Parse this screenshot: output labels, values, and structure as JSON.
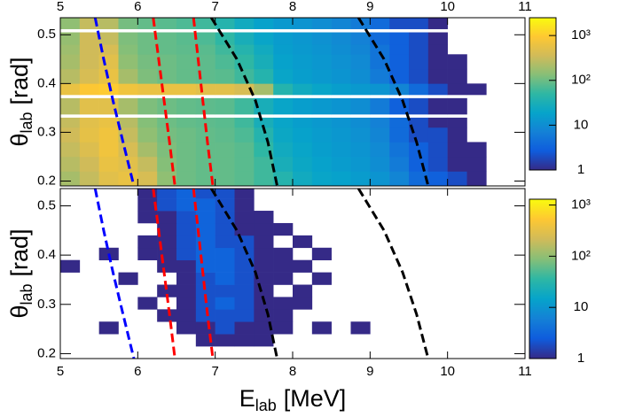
{
  "chart_data": [
    {
      "type": "heatmap",
      "ylabel": {
        "main": "θ",
        "sub": "lab",
        "unit": "[rad]"
      },
      "xlim": [
        5,
        11
      ],
      "xticks": [
        5,
        6,
        7,
        8,
        9,
        10,
        11
      ],
      "xtick_side": "top",
      "ylim": [
        0.19,
        0.535
      ],
      "yticks": [
        0.2,
        0.3,
        0.4,
        0.5
      ],
      "x_bins": [
        5,
        5.25,
        5.5,
        5.75,
        6,
        6.25,
        6.5,
        6.75,
        7,
        7.25,
        7.5,
        7.75,
        8,
        8.25,
        8.5,
        8.75,
        9,
        9.25,
        9.5,
        9.75,
        10,
        10.25,
        10.5,
        10.75,
        11
      ],
      "y_bins": [
        0.19,
        0.22,
        0.25,
        0.28,
        0.31,
        0.33,
        0.337,
        0.37,
        0.377,
        0.4,
        0.43,
        0.46,
        0.48,
        0.505,
        0.512,
        0.535
      ],
      "values": [
        [
          200,
          300,
          500,
          600,
          400,
          150,
          100,
          90,
          90,
          80,
          60,
          40,
          25,
          20,
          18,
          15,
          12,
          8,
          4,
          3,
          2,
          1,
          0,
          0
        ],
        [
          250,
          350,
          600,
          500,
          300,
          130,
          100,
          90,
          90,
          80,
          60,
          30,
          22,
          18,
          15,
          13,
          10,
          6,
          3,
          2,
          1,
          1,
          0,
          0
        ],
        [
          300,
          450,
          700,
          400,
          200,
          120,
          100,
          90,
          90,
          80,
          50,
          25,
          20,
          16,
          14,
          12,
          9,
          5,
          3,
          2,
          1,
          1,
          0,
          0
        ],
        [
          350,
          550,
          700,
          300,
          150,
          110,
          100,
          90,
          85,
          70,
          40,
          22,
          18,
          15,
          13,
          11,
          8,
          4,
          2,
          2,
          1,
          0,
          0,
          0
        ],
        [
          300,
          500,
          600,
          250,
          130,
          100,
          90,
          85,
          80,
          60,
          30,
          20,
          16,
          14,
          12,
          10,
          7,
          4,
          2,
          1,
          1,
          0,
          0,
          0
        ],
        [
          0,
          0,
          0,
          0,
          0,
          0,
          0,
          0,
          0,
          0,
          0,
          0,
          0,
          0,
          0,
          0,
          0,
          0,
          0,
          0,
          0,
          0,
          0,
          0
        ],
        [
          250,
          500,
          500,
          200,
          120,
          100,
          90,
          85,
          80,
          60,
          30,
          20,
          16,
          14,
          12,
          10,
          6,
          3,
          2,
          1,
          1,
          0,
          0,
          0
        ],
        [
          0,
          0,
          0,
          0,
          0,
          0,
          0,
          0,
          0,
          0,
          0,
          0,
          0,
          0,
          0,
          0,
          0,
          0,
          0,
          0,
          0,
          0,
          0,
          0
        ],
        [
          600,
          900,
          1000,
          700,
          600,
          600,
          600,
          500,
          500,
          400,
          200,
          40,
          25,
          20,
          16,
          14,
          12,
          8,
          4,
          2,
          1,
          1,
          0,
          0
        ],
        [
          250,
          400,
          600,
          200,
          120,
          100,
          90,
          85,
          80,
          60,
          40,
          20,
          16,
          14,
          12,
          10,
          6,
          3,
          2,
          1,
          1,
          0,
          0,
          0
        ],
        [
          200,
          350,
          500,
          150,
          110,
          100,
          90,
          85,
          70,
          50,
          30,
          18,
          15,
          13,
          11,
          9,
          5,
          3,
          2,
          1,
          1,
          0,
          0,
          0
        ],
        [
          180,
          350,
          400,
          130,
          100,
          90,
          85,
          80,
          60,
          40,
          25,
          16,
          14,
          12,
          10,
          8,
          5,
          3,
          2,
          1,
          0,
          0,
          0,
          0
        ],
        [
          160,
          350,
          300,
          120,
          100,
          90,
          80,
          70,
          50,
          30,
          20,
          15,
          13,
          11,
          9,
          7,
          4,
          3,
          2,
          1,
          0,
          0,
          0,
          0
        ],
        [
          0,
          0,
          0,
          0,
          0,
          0,
          0,
          0,
          0,
          0,
          0,
          0,
          0,
          0,
          0,
          0,
          0,
          0,
          0,
          0,
          0,
          0,
          0,
          0
        ],
        [
          150,
          300,
          250,
          110,
          90,
          80,
          70,
          60,
          40,
          25,
          18,
          14,
          12,
          10,
          8,
          6,
          4,
          2,
          2,
          1,
          0,
          0,
          0,
          0
        ]
      ],
      "zlim": [
        1,
        2500
      ],
      "log_z": true,
      "zticks": [
        1,
        10,
        {
          "value": 100,
          "label": "10²"
        },
        {
          "value": 1000,
          "label": "10³"
        }
      ],
      "colormap": [
        "#352a87",
        "#0f5cdd",
        "#1481d6",
        "#06a4ca",
        "#2eb7a4",
        "#87bf77",
        "#d1bb59",
        "#fec832",
        "#f9fb0e"
      ],
      "curves": [
        {
          "color": "#0000ff",
          "x": [
            5.45,
            5.56,
            5.68,
            5.81,
            5.95
          ],
          "y": [
            0.535,
            0.45,
            0.365,
            0.28,
            0.19
          ]
        },
        {
          "color": "#ff0000",
          "x": [
            6.2,
            6.27,
            6.34,
            6.41,
            6.48
          ],
          "y": [
            0.535,
            0.45,
            0.365,
            0.28,
            0.19
          ]
        },
        {
          "color": "#ff0000",
          "x": [
            6.72,
            6.78,
            6.84,
            6.9,
            6.97
          ],
          "y": [
            0.535,
            0.45,
            0.365,
            0.28,
            0.19
          ]
        },
        {
          "color": "#000000",
          "x": [
            6.95,
            7.28,
            7.52,
            7.68,
            7.8
          ],
          "y": [
            0.535,
            0.45,
            0.365,
            0.28,
            0.19
          ]
        },
        {
          "color": "#000000",
          "x": [
            8.85,
            9.18,
            9.42,
            9.6,
            9.75
          ],
          "y": [
            0.535,
            0.45,
            0.365,
            0.28,
            0.19
          ]
        }
      ]
    },
    {
      "type": "heatmap",
      "ylabel": {
        "main": "θ",
        "sub": "lab",
        "unit": "[rad]"
      },
      "xlabel": {
        "main": "E",
        "sub": "lab",
        "unit": "[MeV]"
      },
      "xlim": [
        5,
        11
      ],
      "xticks": [
        5,
        6,
        7,
        8,
        9,
        10,
        11
      ],
      "xtick_side": "bottom",
      "ylim": [
        0.19,
        0.535
      ],
      "yticks": [
        0.2,
        0.3,
        0.4,
        0.5
      ],
      "x_bins": [
        5,
        5.25,
        5.5,
        5.75,
        6,
        6.25,
        6.5,
        6.75,
        7,
        7.25,
        7.5,
        7.75,
        8,
        8.25,
        8.5,
        8.75,
        9,
        9.25,
        9.5,
        9.75,
        10,
        10.25,
        10.5,
        10.75,
        11
      ],
      "y_bins": [
        0.19,
        0.215,
        0.24,
        0.265,
        0.29,
        0.315,
        0.34,
        0.365,
        0.39,
        0.415,
        0.44,
        0.465,
        0.49,
        0.515,
        0.535
      ],
      "values": [
        [
          0,
          0,
          0,
          0,
          0,
          0,
          0,
          0,
          0,
          0,
          0,
          0,
          0,
          0,
          0,
          0,
          0,
          0,
          0,
          0,
          0,
          0,
          0,
          0
        ],
        [
          0,
          0,
          0,
          0,
          0,
          0,
          0,
          1,
          1,
          1,
          1,
          0,
          0,
          0,
          0,
          0,
          0,
          0,
          0,
          0,
          0,
          0,
          0,
          0
        ],
        [
          0,
          0,
          1,
          0,
          0,
          0,
          1,
          1,
          2,
          1,
          1,
          1,
          0,
          1,
          0,
          1,
          0,
          0,
          0,
          0,
          0,
          0,
          0,
          0
        ],
        [
          0,
          0,
          0,
          0,
          0,
          1,
          1,
          2,
          2,
          2,
          1,
          1,
          0,
          0,
          0,
          0,
          0,
          0,
          0,
          0,
          0,
          0,
          0,
          0
        ],
        [
          0,
          0,
          0,
          0,
          1,
          0,
          1,
          2,
          3,
          2,
          1,
          1,
          1,
          0,
          0,
          0,
          0,
          0,
          0,
          0,
          0,
          0,
          0,
          0
        ],
        [
          0,
          0,
          0,
          0,
          0,
          1,
          1,
          2,
          2,
          2,
          1,
          0,
          1,
          0,
          0,
          0,
          0,
          0,
          0,
          0,
          0,
          0,
          0,
          0
        ],
        [
          0,
          0,
          0,
          1,
          0,
          0,
          1,
          2,
          3,
          2,
          1,
          1,
          0,
          1,
          0,
          0,
          0,
          0,
          0,
          0,
          0,
          0,
          0,
          0
        ],
        [
          1,
          0,
          0,
          0,
          0,
          1,
          1,
          3,
          3,
          2,
          1,
          1,
          1,
          0,
          0,
          0,
          0,
          0,
          0,
          0,
          0,
          0,
          0,
          0
        ],
        [
          0,
          0,
          1,
          0,
          1,
          1,
          2,
          3,
          3,
          2,
          1,
          1,
          0,
          1,
          0,
          0,
          0,
          0,
          0,
          0,
          0,
          0,
          0,
          0
        ],
        [
          0,
          0,
          0,
          0,
          1,
          1,
          2,
          3,
          2,
          2,
          1,
          0,
          1,
          0,
          0,
          0,
          0,
          0,
          0,
          0,
          0,
          0,
          0,
          0
        ],
        [
          0,
          0,
          0,
          0,
          0,
          1,
          2,
          3,
          2,
          1,
          1,
          1,
          0,
          0,
          0,
          0,
          0,
          0,
          0,
          0,
          0,
          0,
          0,
          0
        ],
        [
          0,
          0,
          0,
          0,
          1,
          1,
          2,
          3,
          2,
          1,
          1,
          0,
          0,
          0,
          0,
          0,
          0,
          0,
          0,
          0,
          0,
          0,
          0,
          0
        ],
        [
          0,
          0,
          0,
          0,
          1,
          2,
          3,
          3,
          2,
          1,
          0,
          0,
          0,
          0,
          0,
          0,
          0,
          0,
          0,
          0,
          0,
          0,
          0,
          0
        ],
        [
          0,
          0,
          0,
          0,
          1,
          2,
          3,
          2,
          2,
          1,
          0,
          0,
          0,
          0,
          0,
          0,
          0,
          0,
          0,
          0,
          0,
          0,
          0,
          0
        ]
      ],
      "zlim": [
        1,
        1300
      ],
      "log_z": true,
      "zticks": [
        1,
        10,
        {
          "value": 100,
          "label": "10²"
        },
        {
          "value": 1000,
          "label": "10³"
        }
      ],
      "colormap": [
        "#352a87",
        "#0f5cdd",
        "#1481d6",
        "#06a4ca",
        "#2eb7a4",
        "#87bf77",
        "#d1bb59",
        "#fec832",
        "#f9fb0e"
      ],
      "curves": [
        {
          "color": "#0000ff",
          "x": [
            5.45,
            5.56,
            5.68,
            5.81,
            5.95
          ],
          "y": [
            0.535,
            0.45,
            0.365,
            0.28,
            0.19
          ]
        },
        {
          "color": "#ff0000",
          "x": [
            6.2,
            6.27,
            6.34,
            6.41,
            6.48
          ],
          "y": [
            0.535,
            0.45,
            0.365,
            0.28,
            0.19
          ]
        },
        {
          "color": "#ff0000",
          "x": [
            6.72,
            6.78,
            6.84,
            6.9,
            6.97
          ],
          "y": [
            0.535,
            0.45,
            0.365,
            0.28,
            0.19
          ]
        },
        {
          "color": "#000000",
          "x": [
            6.95,
            7.28,
            7.52,
            7.68,
            7.8
          ],
          "y": [
            0.535,
            0.45,
            0.365,
            0.28,
            0.19
          ]
        },
        {
          "color": "#000000",
          "x": [
            8.85,
            9.18,
            9.42,
            9.6,
            9.75
          ],
          "y": [
            0.535,
            0.45,
            0.365,
            0.28,
            0.19
          ]
        }
      ]
    }
  ]
}
